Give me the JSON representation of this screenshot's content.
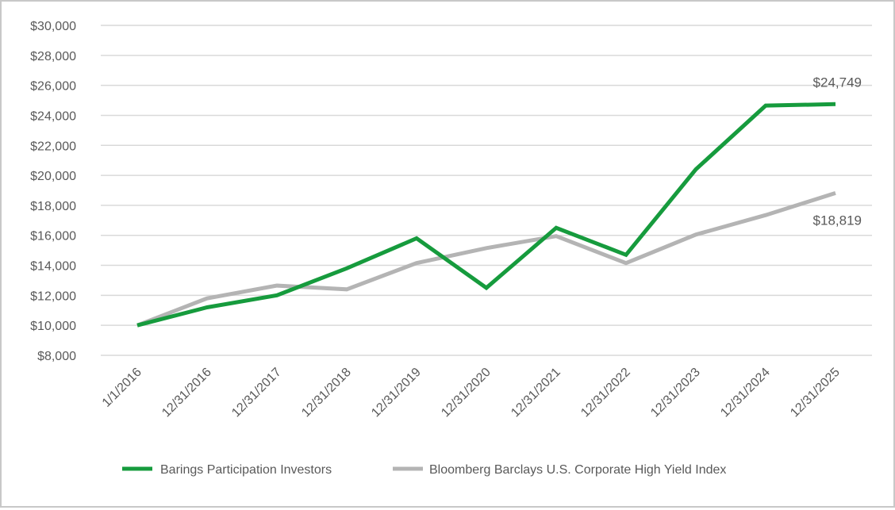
{
  "chart_data": {
    "type": "line",
    "categories": [
      "1/1/2016",
      "12/31/2016",
      "12/31/2017",
      "12/31/2018",
      "12/31/2019",
      "12/31/2020",
      "12/31/2021",
      "12/31/2022",
      "12/31/2023",
      "12/31/2024",
      "12/31/2025"
    ],
    "series": [
      {
        "name": "Barings Participation Investors",
        "color": "#169b3d",
        "values": [
          10000,
          11200,
          12000,
          13800,
          15800,
          12500,
          16500,
          14700,
          20400,
          24650,
          24749
        ],
        "end_label": "$24,749"
      },
      {
        "name": "Bloomberg Barclays U.S. Corporate High Yield Index",
        "color": "#b4b4b4",
        "values": [
          10000,
          11800,
          12650,
          12400,
          14150,
          15150,
          15950,
          14150,
          16050,
          17350,
          18819
        ],
        "end_label": "$18,819"
      }
    ],
    "yticks": [
      "$8,000",
      "$10,000",
      "$12,000",
      "$14,000",
      "$16,000",
      "$18,000",
      "$20,000",
      "$22,000",
      "$24,000",
      "$26,000",
      "$28,000",
      "$30,000"
    ],
    "ylim": [
      8000,
      30000
    ],
    "grid": true,
    "legend_position": "bottom",
    "title": "",
    "xlabel": "",
    "ylabel": ""
  }
}
